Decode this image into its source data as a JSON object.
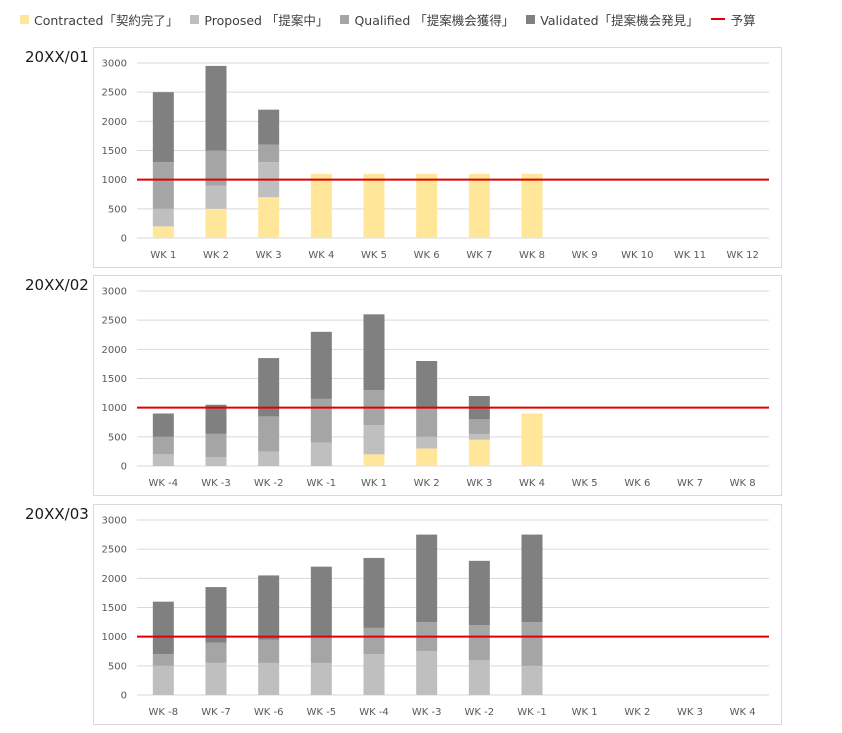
{
  "legend": [
    {
      "label": "Contracted「契約完了」",
      "color": "#FFE699",
      "kind": "swatch"
    },
    {
      "label": "Proposed 「提案中」",
      "color": "#BFBFBF",
      "kind": "swatch"
    },
    {
      "label": "Qualified 「提案機会獲得」",
      "color": "#A5A5A5",
      "kind": "swatch"
    },
    {
      "label": "Validated「提案機会発見」",
      "color": "#808080",
      "kind": "swatch"
    },
    {
      "label": "予算",
      "color": "#E00000",
      "kind": "line"
    }
  ],
  "chart_data": [
    {
      "type": "bar",
      "stacked": true,
      "title": "20XX/01",
      "categories": [
        "WK 1",
        "WK 2",
        "WK 3",
        "WK 4",
        "WK 5",
        "WK 6",
        "WK 7",
        "WK 8",
        "WK 9",
        "WK 10",
        "WK 11",
        "WK 12"
      ],
      "ylim": [
        0,
        3000
      ],
      "yticks": [
        0,
        500,
        1000,
        1500,
        2000,
        2500,
        3000
      ],
      "budget": 1000,
      "grid": true,
      "series": [
        {
          "name": "Contracted「契約完了」",
          "color": "#FFE699",
          "values": [
            200,
            500,
            700,
            1100,
            1100,
            1100,
            1100,
            1100,
            0,
            0,
            0,
            0
          ]
        },
        {
          "name": "Proposed 「提案中」",
          "color": "#BFBFBF",
          "values": [
            300,
            400,
            600,
            0,
            0,
            0,
            0,
            0,
            0,
            0,
            0,
            0
          ]
        },
        {
          "name": "Qualified 「提案機会獲得」",
          "color": "#A5A5A5",
          "values": [
            800,
            600,
            300,
            0,
            0,
            0,
            0,
            0,
            0,
            0,
            0,
            0
          ]
        },
        {
          "name": "Validated「提案機会発見」",
          "color": "#808080",
          "values": [
            1200,
            1450,
            600,
            0,
            0,
            0,
            0,
            0,
            0,
            0,
            0,
            0
          ]
        }
      ]
    },
    {
      "type": "bar",
      "stacked": true,
      "title": "20XX/02",
      "categories": [
        "WK -4",
        "WK -3",
        "WK -2",
        "WK -1",
        "WK 1",
        "WK 2",
        "WK 3",
        "WK 4",
        "WK 5",
        "WK 6",
        "WK 7",
        "WK 8"
      ],
      "ylim": [
        0,
        3000
      ],
      "yticks": [
        0,
        500,
        1000,
        1500,
        2000,
        2500,
        3000
      ],
      "budget": 1000,
      "grid": true,
      "series": [
        {
          "name": "Contracted「契約完了」",
          "color": "#FFE699",
          "values": [
            0,
            0,
            0,
            0,
            200,
            300,
            450,
            900,
            0,
            0,
            0,
            0
          ]
        },
        {
          "name": "Proposed 「提案中」",
          "color": "#BFBFBF",
          "values": [
            200,
            150,
            250,
            400,
            500,
            200,
            100,
            0,
            0,
            0,
            0,
            0
          ]
        },
        {
          "name": "Qualified 「提案機会獲得」",
          "color": "#A5A5A5",
          "values": [
            300,
            400,
            600,
            750,
            600,
            500,
            250,
            0,
            0,
            0,
            0,
            0
          ]
        },
        {
          "name": "Validated「提案機会発見」",
          "color": "#808080",
          "values": [
            400,
            500,
            1000,
            1150,
            1300,
            800,
            400,
            0,
            0,
            0,
            0,
            0
          ]
        }
      ]
    },
    {
      "type": "bar",
      "stacked": true,
      "title": "20XX/03",
      "categories": [
        "WK -8",
        "WK -7",
        "WK -6",
        "WK -5",
        "WK -4",
        "WK -3",
        "WK -2",
        "WK -1",
        "WK 1",
        "WK 2",
        "WK 3",
        "WK 4"
      ],
      "ylim": [
        0,
        3000
      ],
      "yticks": [
        0,
        500,
        1000,
        1500,
        2000,
        2500,
        3000
      ],
      "budget": 1000,
      "grid": true,
      "series": [
        {
          "name": "Contracted「契約完了」",
          "color": "#FFE699",
          "values": [
            0,
            0,
            0,
            0,
            0,
            0,
            0,
            0,
            0,
            0,
            0,
            0
          ]
        },
        {
          "name": "Proposed 「提案中」",
          "color": "#BFBFBF",
          "values": [
            500,
            550,
            550,
            550,
            700,
            750,
            600,
            500,
            0,
            0,
            0,
            0
          ]
        },
        {
          "name": "Qualified 「提案機会獲得」",
          "color": "#A5A5A5",
          "values": [
            200,
            350,
            400,
            450,
            450,
            500,
            600,
            750,
            0,
            0,
            0,
            0
          ]
        },
        {
          "name": "Validated「提案機会発見」",
          "color": "#808080",
          "values": [
            900,
            950,
            1100,
            1200,
            1200,
            1500,
            1100,
            1500,
            0,
            0,
            0,
            0
          ]
        }
      ]
    }
  ]
}
